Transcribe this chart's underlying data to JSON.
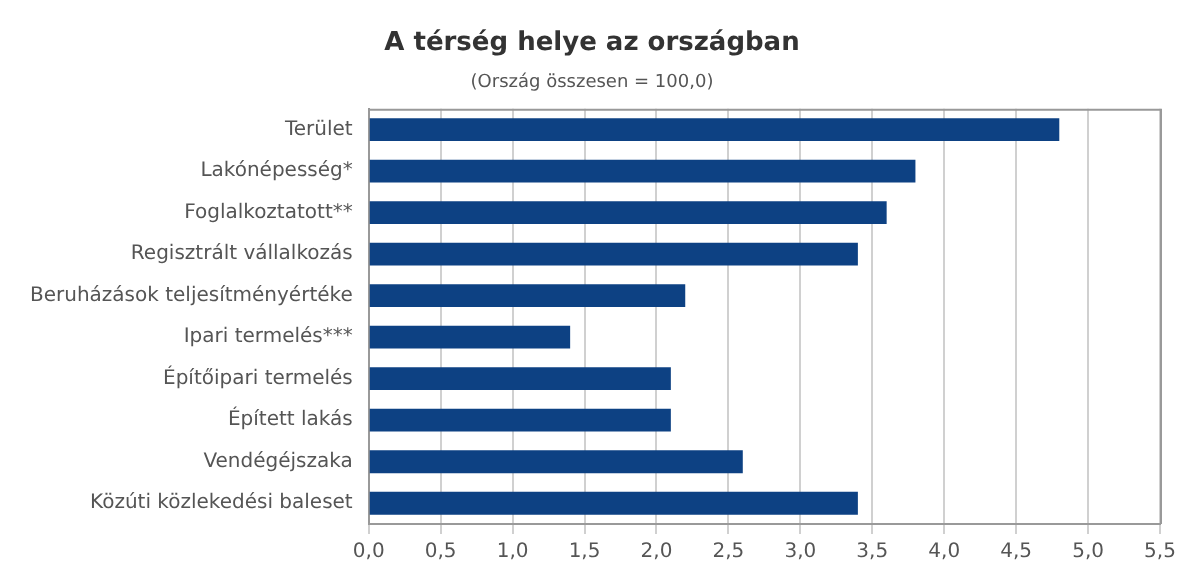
{
  "chart_data": {
    "type": "bar",
    "orientation": "horizontal",
    "title": "A térség helye az országban",
    "subtitle": "(Ország összesen = 100,0)",
    "categories": [
      "Terület",
      "Lakónépesség*",
      "Foglalkoztatott**",
      "Regisztrált vállalkozás",
      "Beruházások teljesítményértéke",
      "Ipari termelés***",
      "Építőipari termelés",
      "Épített lakás",
      "Vendégéjszaka",
      "Közúti közlekedési baleset"
    ],
    "values": [
      4.8,
      3.8,
      3.6,
      3.4,
      2.2,
      1.4,
      2.1,
      2.1,
      2.6,
      3.4
    ],
    "color": "#0d4183",
    "xlim": [
      0,
      5.5
    ],
    "xticks": [
      {
        "value": 0,
        "label": "0,0"
      },
      {
        "value": 0.5,
        "label": "0,5"
      },
      {
        "value": 1,
        "label": "1,0"
      },
      {
        "value": 1.5,
        "label": "1,5"
      },
      {
        "value": 2,
        "label": "2,0"
      },
      {
        "value": 2.5,
        "label": "2,5"
      },
      {
        "value": 3,
        "label": "3,0"
      },
      {
        "value": 3.5,
        "label": "3,5"
      },
      {
        "value": 4,
        "label": "4,0"
      },
      {
        "value": 4.5,
        "label": "4,5"
      },
      {
        "value": 5,
        "label": "5,0"
      },
      {
        "value": 5.5,
        "label": "5,5"
      }
    ],
    "grid": "x",
    "legend": false
  }
}
